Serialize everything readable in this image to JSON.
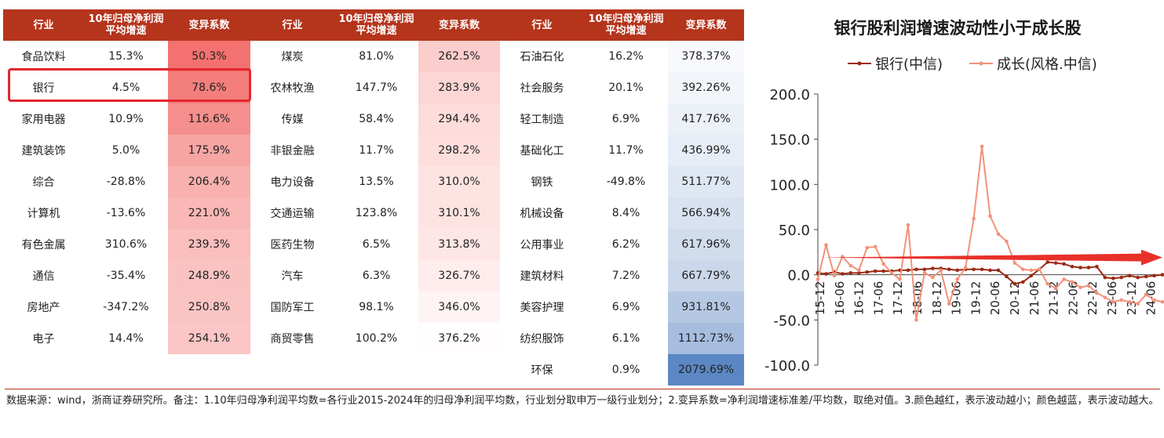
{
  "table": {
    "headers": [
      "行业",
      "10年归母净利润\n平均增速",
      "变异系数"
    ],
    "groups": [
      [
        [
          "食品饮料",
          "15.3%",
          "50.3%"
        ],
        [
          "银行",
          "4.5%",
          "78.6%"
        ],
        [
          "家用电器",
          "10.9%",
          "116.6%"
        ],
        [
          "建筑装饰",
          "5.0%",
          "175.9%"
        ],
        [
          "综合",
          "-28.8%",
          "206.4%"
        ],
        [
          "计算机",
          "-13.6%",
          "221.0%"
        ],
        [
          "有色金属",
          "310.6%",
          "239.3%"
        ],
        [
          "通信",
          "-35.4%",
          "248.9%"
        ],
        [
          "房地产",
          "-347.2%",
          "250.8%"
        ],
        [
          "电子",
          "14.4%",
          "254.1%"
        ]
      ],
      [
        [
          "煤炭",
          "81.0%",
          "262.5%"
        ],
        [
          "农林牧渔",
          "147.7%",
          "283.9%"
        ],
        [
          "传媒",
          "58.4%",
          "294.4%"
        ],
        [
          "非银金融",
          "11.7%",
          "298.2%"
        ],
        [
          "电力设备",
          "13.5%",
          "310.0%"
        ],
        [
          "交通运输",
          "123.8%",
          "310.1%"
        ],
        [
          "医药生物",
          "6.5%",
          "313.8%"
        ],
        [
          "汽车",
          "6.3%",
          "326.7%"
        ],
        [
          "国防军工",
          "98.1%",
          "346.0%"
        ],
        [
          "商贸零售",
          "100.2%",
          "376.2%"
        ]
      ],
      [
        [
          "石油石化",
          "16.2%",
          "378.37%"
        ],
        [
          "社会服务",
          "20.1%",
          "392.26%"
        ],
        [
          "轻工制造",
          "6.9%",
          "417.76%"
        ],
        [
          "基础化工",
          "11.7%",
          "436.99%"
        ],
        [
          "钢铁",
          "-49.8%",
          "511.77%"
        ],
        [
          "机械设备",
          "8.4%",
          "566.94%"
        ],
        [
          "公用事业",
          "6.2%",
          "617.96%"
        ],
        [
          "建筑材料",
          "7.2%",
          "667.79%"
        ],
        [
          "美容护理",
          "6.9%",
          "931.81%"
        ],
        [
          "纺织服饰",
          "6.1%",
          "1112.73%"
        ],
        [
          "环保",
          "0.9%",
          "2079.69%"
        ]
      ]
    ],
    "cv_colors": [
      [
        "#f3716f",
        "#f47e7c",
        "#f58f8d",
        "#f7a5a3",
        "#f8b1af",
        "#f9b7b5",
        "#fabebd",
        "#fac3c2",
        "#fac4c3",
        "#fbc6c5"
      ],
      [
        "#fbcdcc",
        "#fcd6d5",
        "#fddcdb",
        "#fddedd",
        "#fde4e3",
        "#fde4e3",
        "#fde6e5",
        "#feedec",
        "#fff4f4",
        "#fffdfd"
      ],
      [
        "#f7f9fc",
        "#f2f6fb",
        "#ecf1f8",
        "#e7edf6",
        "#dfe7f3",
        "#d8e2f0",
        "#d1dcec",
        "#cbd7ea",
        "#b5c8e3",
        "#a6bde0",
        "#5b87c4"
      ]
    ]
  },
  "chart_data": {
    "type": "line",
    "title": "银行股利润增速波动性小于成长股",
    "legend_position": "top",
    "ylim": [
      -100,
      200
    ],
    "yticks": [
      "200.0",
      "150.0",
      "100.0",
      "50.0",
      "0.0",
      "-50.0",
      "-100.0"
    ],
    "x_ticklabels": [
      "15-12",
      "16-06",
      "16-12",
      "17-06",
      "17-12",
      "18-06",
      "18-12",
      "19-06",
      "19-12",
      "20-06",
      "20-12",
      "21-06",
      "21-12",
      "22-06",
      "22-12",
      "23-06",
      "23-12",
      "24-06"
    ],
    "series": [
      {
        "name": "银行(中信)",
        "color": "#9b2a14",
        "values": [
          2,
          1,
          3,
          1,
          2,
          2,
          3,
          4,
          4,
          4,
          5,
          5,
          6,
          6,
          7,
          7,
          6,
          5,
          6,
          6,
          6,
          5,
          5,
          -2,
          -10,
          -8,
          -1,
          6,
          14,
          13,
          12,
          9,
          8,
          8,
          9,
          -3,
          -4,
          -3,
          -1,
          -3,
          -2,
          -1,
          0
        ]
      },
      {
        "name": "成长(风格.中信)",
        "color": "#f2927a",
        "values": [
          -5,
          33,
          -1,
          20,
          10,
          5,
          30,
          31,
          12,
          2,
          -5,
          55,
          -50,
          2,
          -3,
          5,
          -32,
          -5,
          8,
          62,
          142,
          65,
          45,
          37,
          13,
          6,
          5,
          6,
          -10,
          -15,
          -5,
          -8,
          -14,
          -12,
          -20,
          -25,
          -30,
          -28,
          -30,
          -32,
          -22,
          -28,
          -30
        ]
      }
    ],
    "annotation_arrow": true
  },
  "note": "数据来源：wind，浙商证券研究所。备注：1.10年归母净利润平均数=各行业2015-2024年的归母净利润平均数，行业划分取申万一级行业划分；2.变异系数=净利润增速标准差/平均数，取绝对值。3.颜色越红，表示波动越小；颜色越蓝，表示波动越大。"
}
